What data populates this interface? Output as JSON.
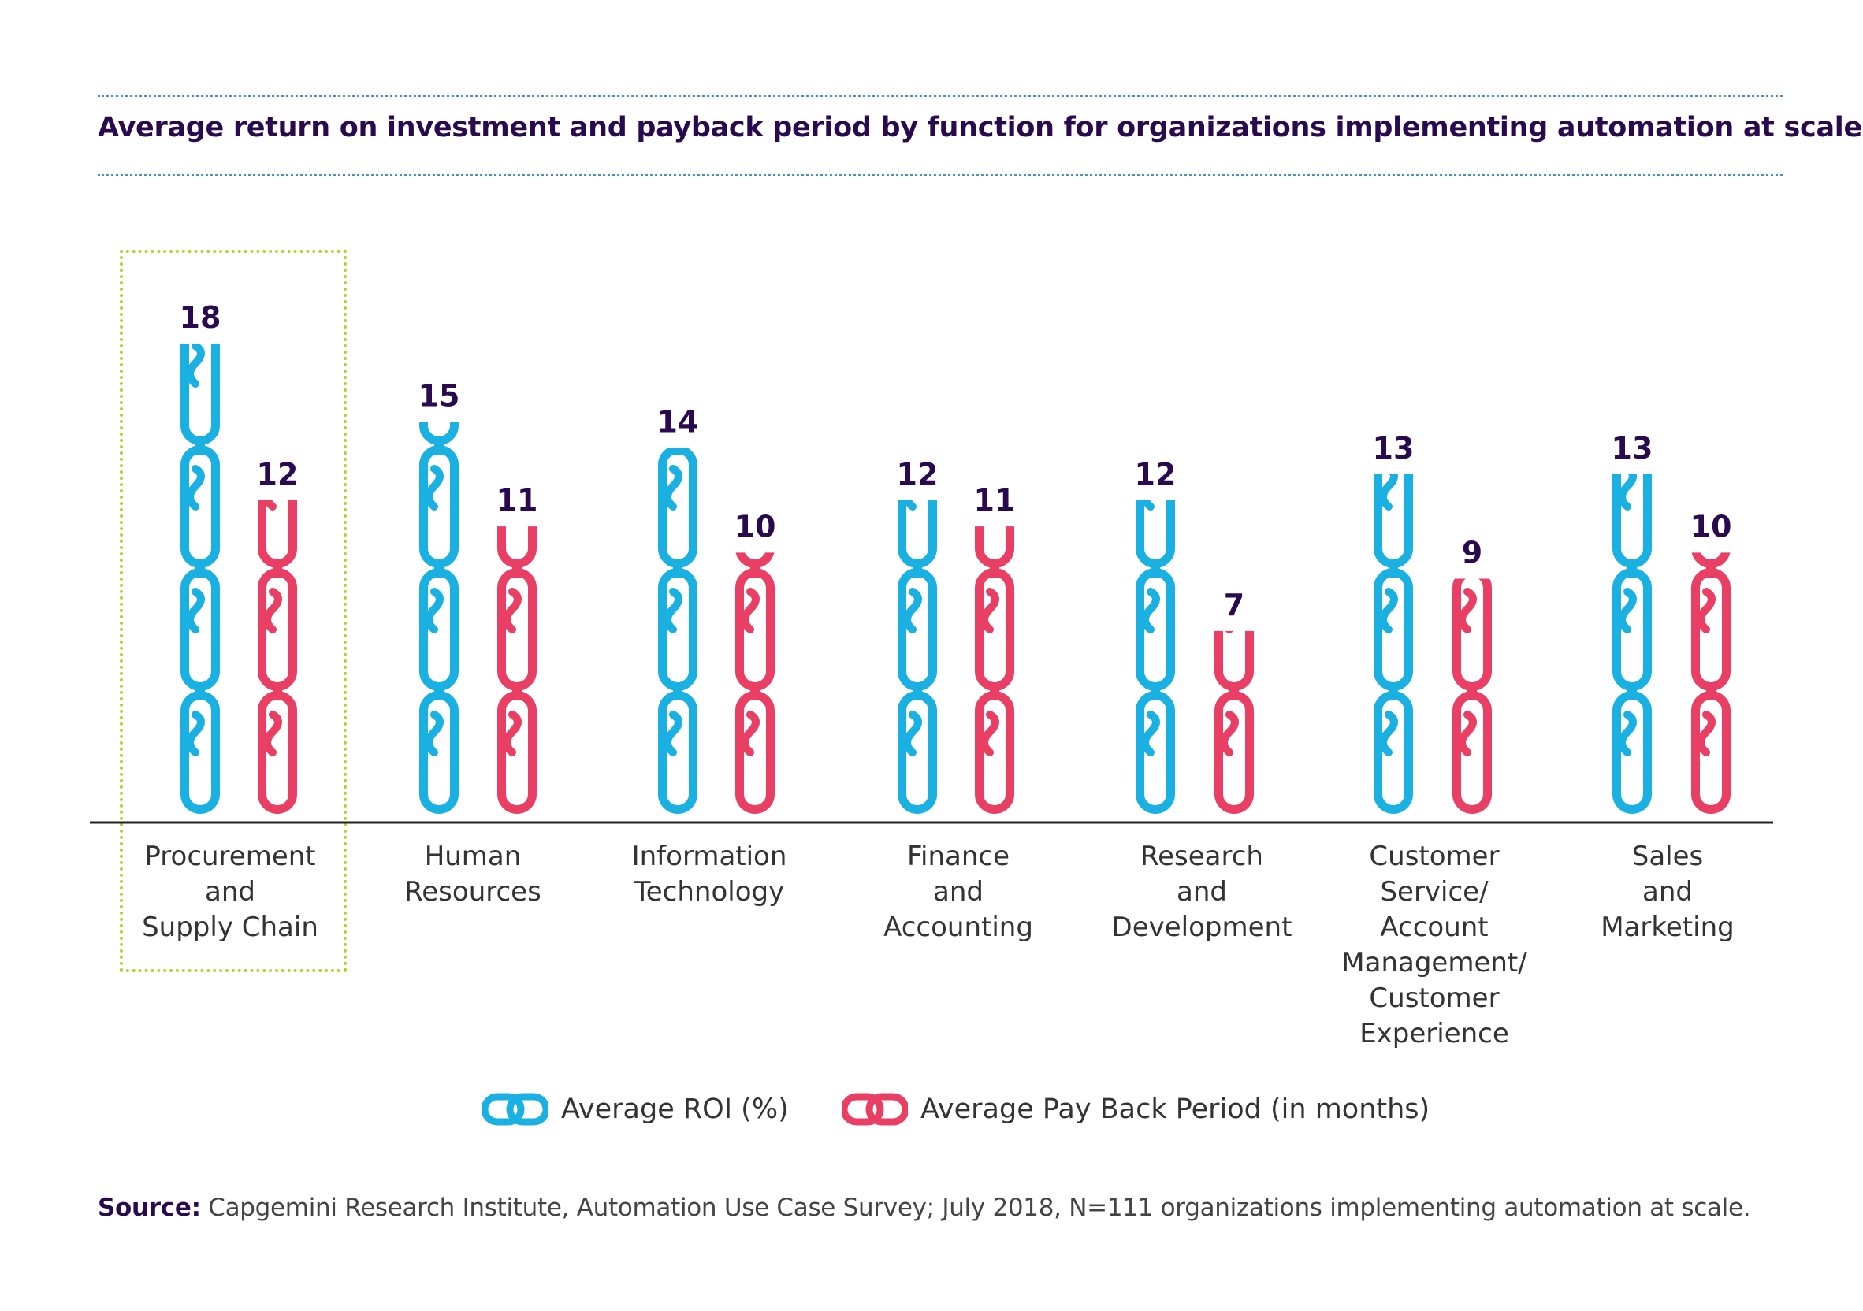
{
  "title": "Average return on investment and payback period by function for organizations implementing automation at scale",
  "chart_data": {
    "type": "bar",
    "categories": [
      [
        "Procurement",
        "and",
        "Supply Chain"
      ],
      [
        "Human",
        "Resources"
      ],
      [
        "Information",
        "Technology"
      ],
      [
        "Finance",
        "and",
        "Accounting"
      ],
      [
        "Research",
        "and",
        "Development"
      ],
      [
        "Customer",
        "Service/",
        "Account",
        "Management/",
        "Customer",
        "Experience"
      ],
      [
        "Sales",
        "and",
        "Marketing"
      ]
    ],
    "series": [
      {
        "name": "Average ROI (%)",
        "values": [
          18,
          15,
          14,
          12,
          12,
          13,
          13
        ],
        "color": "#1ab1e2"
      },
      {
        "name": "Average Pay Back Period (in months)",
        "values": [
          12,
          11,
          10,
          11,
          7,
          9,
          10
        ],
        "color": "#ea3f64"
      }
    ],
    "highlighted_category": 0,
    "ylim": [
      0,
      18
    ],
    "axis_color": "#222222",
    "label_color": "#2a0a4f"
  },
  "source": {
    "label": "Source:",
    "text": " Capgemini Research Institute, Automation Use Case Survey; July 2018, N=111 organizations implementing automation at scale."
  }
}
